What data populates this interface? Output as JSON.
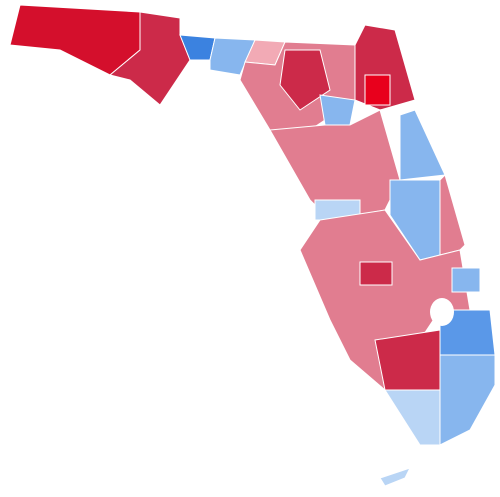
{
  "map": {
    "colors": [
      "#d40f2c",
      "#cc2a49",
      "#3b82e0",
      "#87b6ee",
      "#e17d90",
      "#e8001c",
      "#f2aab5",
      "#b9d5f5",
      "#5a98e8"
    ]
  }
}
